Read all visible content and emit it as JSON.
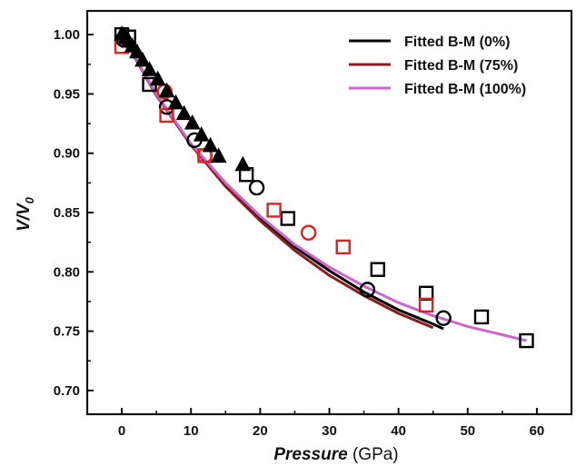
{
  "chart_data": {
    "type": "scatter",
    "xlabel": {
      "italic": "Pressure",
      "normal": " (GPa)"
    },
    "ylabel": {
      "main": "V/V",
      "sub": "0"
    },
    "xlim": [
      -5,
      65
    ],
    "ylim": [
      0.68,
      1.02
    ],
    "xticks": [
      0,
      10,
      20,
      30,
      40,
      50,
      60
    ],
    "xtick_labels": [
      "0",
      "10",
      "20",
      "30",
      "40",
      "50",
      "60"
    ],
    "yticks": [
      0.7,
      0.75,
      0.8,
      0.85,
      0.9,
      0.95,
      1.0
    ],
    "ytick_labels": [
      "0.70",
      "0.75",
      "0.80",
      "0.85",
      "0.90",
      "0.95",
      "1.00"
    ],
    "legend_position": "top-right",
    "fits": [
      {
        "name": "Fitted B-M (0%)",
        "color": "#000000",
        "x": [
          0,
          5,
          10,
          15,
          20,
          25,
          30,
          35,
          40,
          45,
          46.5
        ],
        "y": [
          1.0,
          0.949,
          0.907,
          0.873,
          0.845,
          0.821,
          0.801,
          0.783,
          0.768,
          0.756,
          0.752
        ]
      },
      {
        "name": "Fitted B-M (75%)",
        "color": "#8a1c1c",
        "x": [
          0,
          5,
          10,
          15,
          20,
          25,
          30,
          35,
          40,
          45
        ],
        "y": [
          1.0,
          0.949,
          0.907,
          0.872,
          0.843,
          0.818,
          0.797,
          0.78,
          0.765,
          0.753
        ]
      },
      {
        "name": "Fitted B-M (100%)",
        "color": "#cc66cc",
        "x": [
          0,
          5,
          10,
          15,
          20,
          25,
          30,
          35,
          40,
          45,
          50,
          55,
          58.5
        ],
        "y": [
          1.0,
          0.95,
          0.908,
          0.875,
          0.847,
          0.823,
          0.804,
          0.788,
          0.774,
          0.763,
          0.754,
          0.747,
          0.742
        ]
      }
    ],
    "series": [
      {
        "marker": "square",
        "color": "#000000",
        "filled": false,
        "x": [
          0,
          1,
          4,
          18,
          24,
          37,
          44,
          52,
          58.5
        ],
        "y": [
          1.0,
          0.998,
          0.958,
          0.882,
          0.845,
          0.802,
          0.782,
          0.762,
          0.742
        ]
      },
      {
        "marker": "circle",
        "color": "#000000",
        "filled": false,
        "x": [
          0.2,
          6.5,
          10.5,
          19.5,
          35.5,
          46.5
        ],
        "y": [
          0.996,
          0.939,
          0.911,
          0.871,
          0.785,
          0.761
        ]
      },
      {
        "marker": "square",
        "color": "#dd2222",
        "filled": false,
        "x": [
          0,
          6.5,
          12,
          22,
          32,
          44
        ],
        "y": [
          0.99,
          0.932,
          0.898,
          0.852,
          0.821,
          0.772
        ]
      },
      {
        "marker": "circle",
        "color": "#dd2222",
        "filled": false,
        "x": [
          6.2,
          12,
          27
        ],
        "y": [
          0.952,
          0.898,
          0.833
        ]
      },
      {
        "marker": "triangle",
        "color": "#000000",
        "filled": true,
        "x": [
          0,
          0.3,
          0.6,
          1.0,
          1.5,
          2.2,
          3.0,
          4.0,
          5.2,
          6.5,
          7.8,
          9.0,
          10.2,
          11.5,
          12.8,
          14.0,
          17.5
        ],
        "y": [
          1.0,
          0.999,
          0.997,
          0.994,
          0.99,
          0.985,
          0.978,
          0.97,
          0.962,
          0.952,
          0.942,
          0.933,
          0.925,
          0.915,
          0.906,
          0.897,
          0.89
        ]
      }
    ]
  }
}
